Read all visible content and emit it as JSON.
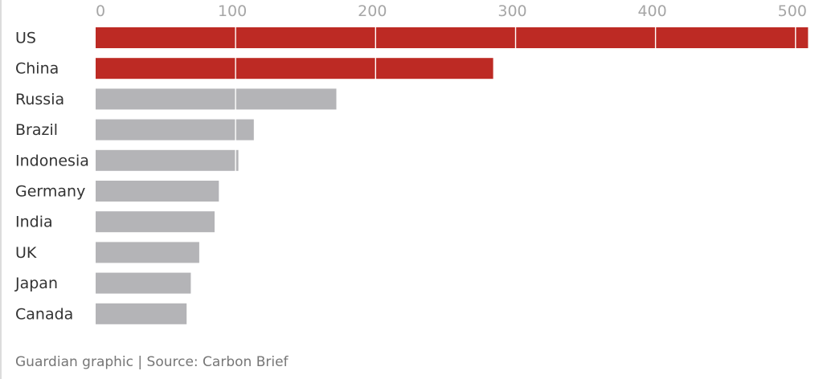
{
  "source": "Guardian graphic | Source: Carbon Brief",
  "colors": {
    "highlight": "#bd2a24",
    "muted": "#b4b4b7",
    "tick_text": "#a6a6a6",
    "label_text": "#333333",
    "gridline": "#ffffff",
    "source_text": "#767676"
  },
  "chart_data": {
    "type": "bar",
    "orientation": "horizontal",
    "title": "",
    "xlabel": "",
    "ylabel": "",
    "xlim": [
      0,
      510
    ],
    "x_ticks": [
      0,
      100,
      200,
      300,
      400,
      500
    ],
    "x_tick_labels": [
      "0",
      "100",
      "200",
      "300",
      "400",
      "500"
    ],
    "axis_position": "top",
    "grid": true,
    "legend": "none",
    "categories": [
      "US",
      "China",
      "Russia",
      "Brazil",
      "Indonesia",
      "Germany",
      "India",
      "UK",
      "Japan",
      "Canada"
    ],
    "values": [
      509,
      284,
      172,
      113,
      102,
      88,
      85,
      74,
      68,
      65
    ],
    "highlighted": [
      true,
      true,
      false,
      false,
      false,
      false,
      false,
      false,
      false,
      false
    ]
  }
}
